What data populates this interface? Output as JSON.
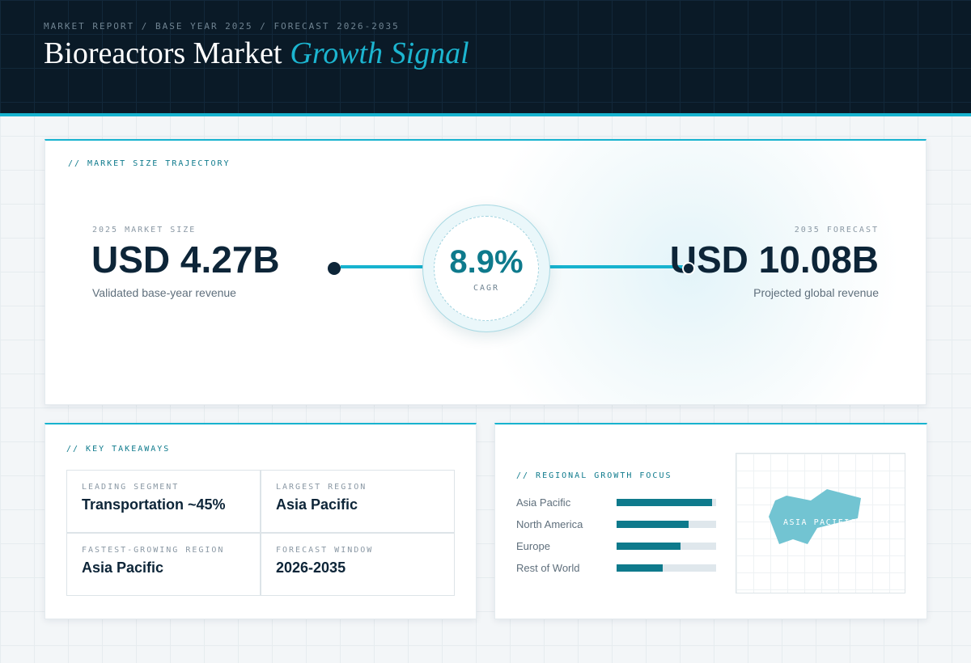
{
  "header": {
    "kicker": "MARKET REPORT / BASE YEAR 2025 / FORECAST 2026-2035",
    "title": "Bioreactors Market",
    "title_accent": "Growth Signal"
  },
  "trajectory": {
    "label": "// MARKET SIZE TRAJECTORY",
    "start": {
      "label": "2025 MARKET SIZE",
      "value": "USD 4.27B",
      "note": "Validated base-year revenue"
    },
    "cagr": {
      "value": "8.9%",
      "label": "CAGR"
    },
    "end": {
      "label": "2035 FORECAST",
      "value": "USD 10.08B",
      "note": "Projected global revenue"
    }
  },
  "takeaways": {
    "label": "// KEY TAKEAWAYS",
    "items": [
      {
        "label": "LEADING SEGMENT",
        "value": "Transportation ~45%"
      },
      {
        "label": "LARGEST REGION",
        "value": "Asia Pacific"
      },
      {
        "label": "FASTEST-GROWING REGION",
        "value": "Asia Pacific"
      },
      {
        "label": "FORECAST WINDOW",
        "value": "2026-2035"
      }
    ]
  },
  "regional": {
    "label": "// REGIONAL GROWTH FOCUS",
    "type": "bar",
    "categories": [
      "Asia Pacific",
      "North America",
      "Europe",
      "Rest of World"
    ],
    "values": [
      96,
      72,
      64,
      46
    ],
    "xlim": [
      0,
      100
    ],
    "color": "#0e7a8c",
    "highlight": "ASIA PACIFIC"
  }
}
